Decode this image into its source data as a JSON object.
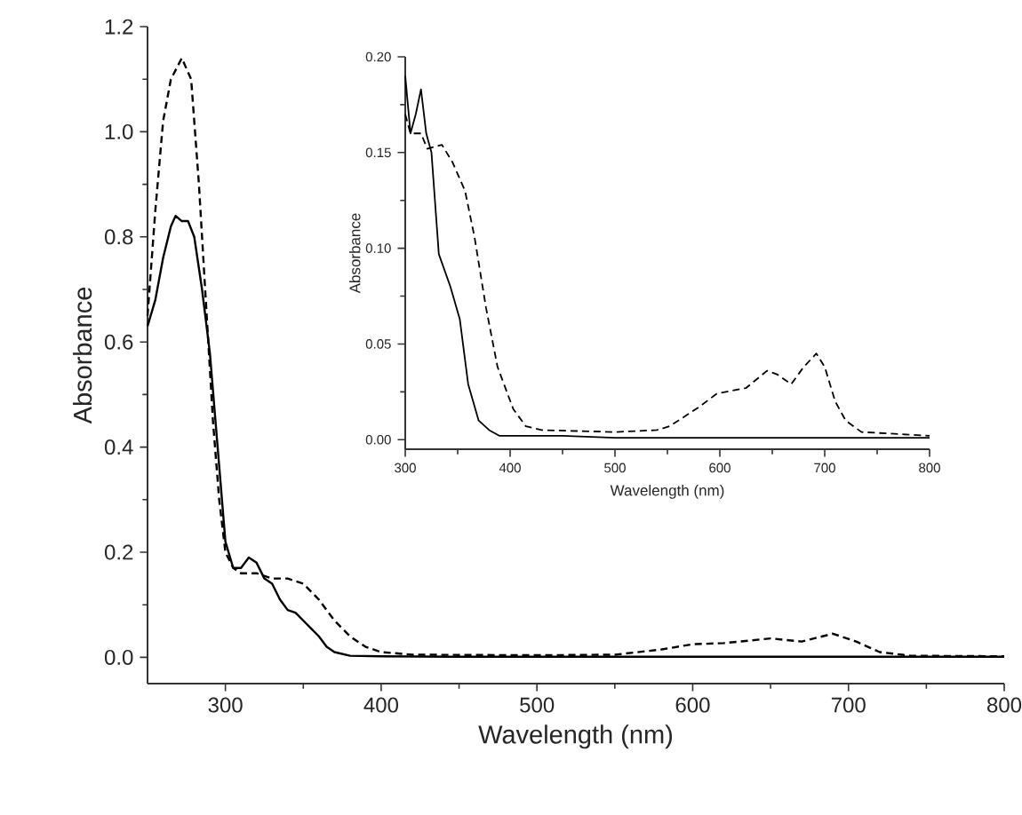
{
  "chart_data": [
    {
      "type": "line",
      "xlabel": "Wavelength (nm)",
      "ylabel": "Absorbance",
      "xlim": [
        250,
        800
      ],
      "ylim": [
        -0.05,
        1.2
      ],
      "xticks": [
        300,
        400,
        500,
        600,
        700,
        800
      ],
      "yticks": [
        {
          "value": 0,
          "label": "0.0"
        },
        0.2,
        0.4,
        0.6,
        0.8,
        {
          "value": 1,
          "label": "1.0"
        },
        1.2
      ],
      "marker": "none",
      "series": [
        {
          "color": "#000000",
          "line_style": "solid",
          "x": [
            250,
            255,
            260,
            265,
            268,
            272,
            276,
            280,
            285,
            290,
            295,
            300,
            305,
            310,
            315,
            320,
            325,
            330,
            335,
            340,
            345,
            350,
            355,
            360,
            365,
            370,
            380,
            400,
            450,
            500,
            600,
            700,
            800
          ],
          "values": [
            0.63,
            0.68,
            0.76,
            0.82,
            0.84,
            0.83,
            0.83,
            0.8,
            0.7,
            0.58,
            0.4,
            0.22,
            0.17,
            0.17,
            0.19,
            0.18,
            0.15,
            0.14,
            0.11,
            0.09,
            0.085,
            0.07,
            0.055,
            0.04,
            0.02,
            0.01,
            0.003,
            0.002,
            0.001,
            0.001,
            0.001,
            0.001,
            0.001
          ]
        },
        {
          "color": "#000000",
          "line_style": "dashed",
          "x": [
            250,
            255,
            260,
            265,
            272,
            278,
            283,
            288,
            292,
            296,
            300,
            305,
            310,
            320,
            330,
            340,
            350,
            360,
            370,
            380,
            390,
            400,
            420,
            500,
            550,
            580,
            600,
            620,
            650,
            670,
            690,
            705,
            720,
            740,
            800
          ],
          "values": [
            0.65,
            0.85,
            1.02,
            1.1,
            1.14,
            1.1,
            0.9,
            0.65,
            0.45,
            0.3,
            0.2,
            0.17,
            0.16,
            0.16,
            0.15,
            0.15,
            0.14,
            0.11,
            0.07,
            0.04,
            0.02,
            0.01,
            0.005,
            0.004,
            0.005,
            0.015,
            0.025,
            0.027,
            0.036,
            0.03,
            0.045,
            0.03,
            0.01,
            0.003,
            0.002
          ]
        }
      ]
    },
    {
      "type": "line",
      "xlabel": "Wavelength (nm)",
      "ylabel": "Absorbance",
      "xlim": [
        300,
        800
      ],
      "ylim": [
        -0.005,
        0.2
      ],
      "xticks": [
        300,
        400,
        500,
        600,
        700,
        800
      ],
      "yticks": [
        {
          "value": 0,
          "label": "0.00"
        },
        {
          "value": 0.05,
          "label": "0.05"
        },
        {
          "value": 0.1,
          "label": "0.10"
        },
        {
          "value": 0.15,
          "label": "0.15"
        },
        {
          "value": 0.2,
          "label": "0.20"
        }
      ],
      "marker": "none",
      "series": [
        {
          "color": "#000000",
          "line_style": "solid",
          "x": [
            300,
            305,
            310,
            315,
            320,
            325,
            332,
            343,
            352,
            360,
            370,
            380,
            390,
            400,
            450,
            500,
            600,
            700,
            800
          ],
          "values": [
            0.19,
            0.16,
            0.17,
            0.183,
            0.16,
            0.15,
            0.097,
            0.08,
            0.063,
            0.029,
            0.01,
            0.005,
            0.002,
            0.002,
            0.002,
            0.001,
            0.001,
            0.001,
            0.001
          ]
        },
        {
          "color": "#000000",
          "line_style": "dashed",
          "x": [
            300,
            305,
            315,
            321,
            335,
            345,
            357,
            366,
            377,
            388,
            403,
            415,
            430,
            500,
            540,
            552,
            580,
            597,
            625,
            645,
            655,
            668,
            680,
            692,
            700,
            710,
            720,
            735,
            800
          ],
          "values": [
            0.17,
            0.16,
            0.16,
            0.152,
            0.154,
            0.145,
            0.13,
            0.106,
            0.069,
            0.038,
            0.016,
            0.007,
            0.005,
            0.004,
            0.005,
            0.007,
            0.017,
            0.024,
            0.027,
            0.036,
            0.034,
            0.029,
            0.038,
            0.045,
            0.038,
            0.02,
            0.01,
            0.004,
            0.002
          ]
        }
      ]
    }
  ]
}
